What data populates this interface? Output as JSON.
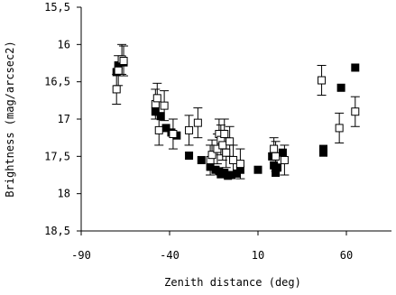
{
  "chart_data": {
    "type": "scatter",
    "xlabel": "Zenith distance (deg)",
    "ylabel": "Brightness (mag/arcsec2)",
    "xlim": [
      -90,
      85
    ],
    "ylim": [
      15.5,
      18.5
    ],
    "y_inverted": true,
    "x_ticks": [
      -90,
      -40,
      10,
      60
    ],
    "x_tick_labels": [
      "-90",
      "-40",
      "10",
      "60"
    ],
    "y_ticks": [
      15.5,
      16,
      16.5,
      17,
      17.5,
      18,
      18.5
    ],
    "y_tick_labels": [
      "15,5",
      "16",
      "16,5",
      "17",
      "17,5",
      "18",
      "18,5"
    ],
    "grid": false,
    "series": [
      {
        "marker": "filled-square",
        "color": "#000000",
        "points": [
          {
            "x": -70,
            "y": 16.37
          },
          {
            "x": -69,
            "y": 16.28
          },
          {
            "x": -66,
            "y": 16.24
          },
          {
            "x": -48,
            "y": 16.9
          },
          {
            "x": -45,
            "y": 16.96
          },
          {
            "x": -42,
            "y": 17.12
          },
          {
            "x": -39,
            "y": 17.18
          },
          {
            "x": -36,
            "y": 17.22
          },
          {
            "x": -29,
            "y": 17.49
          },
          {
            "x": -22,
            "y": 17.55
          },
          {
            "x": -17,
            "y": 17.64
          },
          {
            "x": -14,
            "y": 17.68
          },
          {
            "x": -12,
            "y": 17.7
          },
          {
            "x": -11,
            "y": 17.74
          },
          {
            "x": -9,
            "y": 17.72
          },
          {
            "x": -7,
            "y": 17.76
          },
          {
            "x": -5,
            "y": 17.75
          },
          {
            "x": -2,
            "y": 17.73
          },
          {
            "x": 0,
            "y": 17.68
          },
          {
            "x": 10,
            "y": 17.68
          },
          {
            "x": 18,
            "y": 17.5
          },
          {
            "x": 19,
            "y": 17.62
          },
          {
            "x": 20,
            "y": 17.72
          },
          {
            "x": 21,
            "y": 17.65
          },
          {
            "x": 24,
            "y": 17.45
          },
          {
            "x": 47,
            "y": 17.4
          },
          {
            "x": 47,
            "y": 17.45
          },
          {
            "x": 57,
            "y": 16.58
          },
          {
            "x": 65,
            "y": 16.31
          }
        ]
      },
      {
        "marker": "open-square",
        "color": "#000000",
        "points": [
          {
            "x": -70,
            "y": 16.6,
            "err": 0.2
          },
          {
            "x": -69,
            "y": 16.35,
            "err": 0.2
          },
          {
            "x": -67,
            "y": 16.2,
            "err": 0.2
          },
          {
            "x": -66,
            "y": 16.22,
            "err": 0.2
          },
          {
            "x": -48,
            "y": 16.8,
            "err": 0.2
          },
          {
            "x": -47,
            "y": 16.72,
            "err": 0.2
          },
          {
            "x": -46,
            "y": 17.15,
            "err": 0.2
          },
          {
            "x": -43,
            "y": 16.82,
            "err": 0.2
          },
          {
            "x": -38,
            "y": 17.2,
            "err": 0.2
          },
          {
            "x": -29,
            "y": 17.15,
            "err": 0.2
          },
          {
            "x": -24,
            "y": 17.05,
            "err": 0.2
          },
          {
            "x": -17,
            "y": 17.55,
            "err": 0.2
          },
          {
            "x": -16,
            "y": 17.48,
            "err": 0.2
          },
          {
            "x": -13,
            "y": 17.4,
            "err": 0.2
          },
          {
            "x": -12,
            "y": 17.2,
            "err": 0.2
          },
          {
            "x": -11,
            "y": 17.28,
            "err": 0.2
          },
          {
            "x": -10,
            "y": 17.35,
            "err": 0.2
          },
          {
            "x": -9,
            "y": 17.2,
            "err": 0.2
          },
          {
            "x": -8,
            "y": 17.45,
            "err": 0.2
          },
          {
            "x": -6,
            "y": 17.3,
            "err": 0.2
          },
          {
            "x": -4,
            "y": 17.55,
            "err": 0.2
          },
          {
            "x": 0,
            "y": 17.6,
            "err": 0.2
          },
          {
            "x": 19,
            "y": 17.4,
            "err": 0.15
          },
          {
            "x": 20,
            "y": 17.5,
            "err": 0.2
          },
          {
            "x": 25,
            "y": 17.55,
            "err": 0.2
          },
          {
            "x": 46,
            "y": 16.48,
            "err": 0.2
          },
          {
            "x": 56,
            "y": 17.12,
            "err": 0.2
          },
          {
            "x": 65,
            "y": 16.9,
            "err": 0.2
          }
        ]
      }
    ]
  }
}
